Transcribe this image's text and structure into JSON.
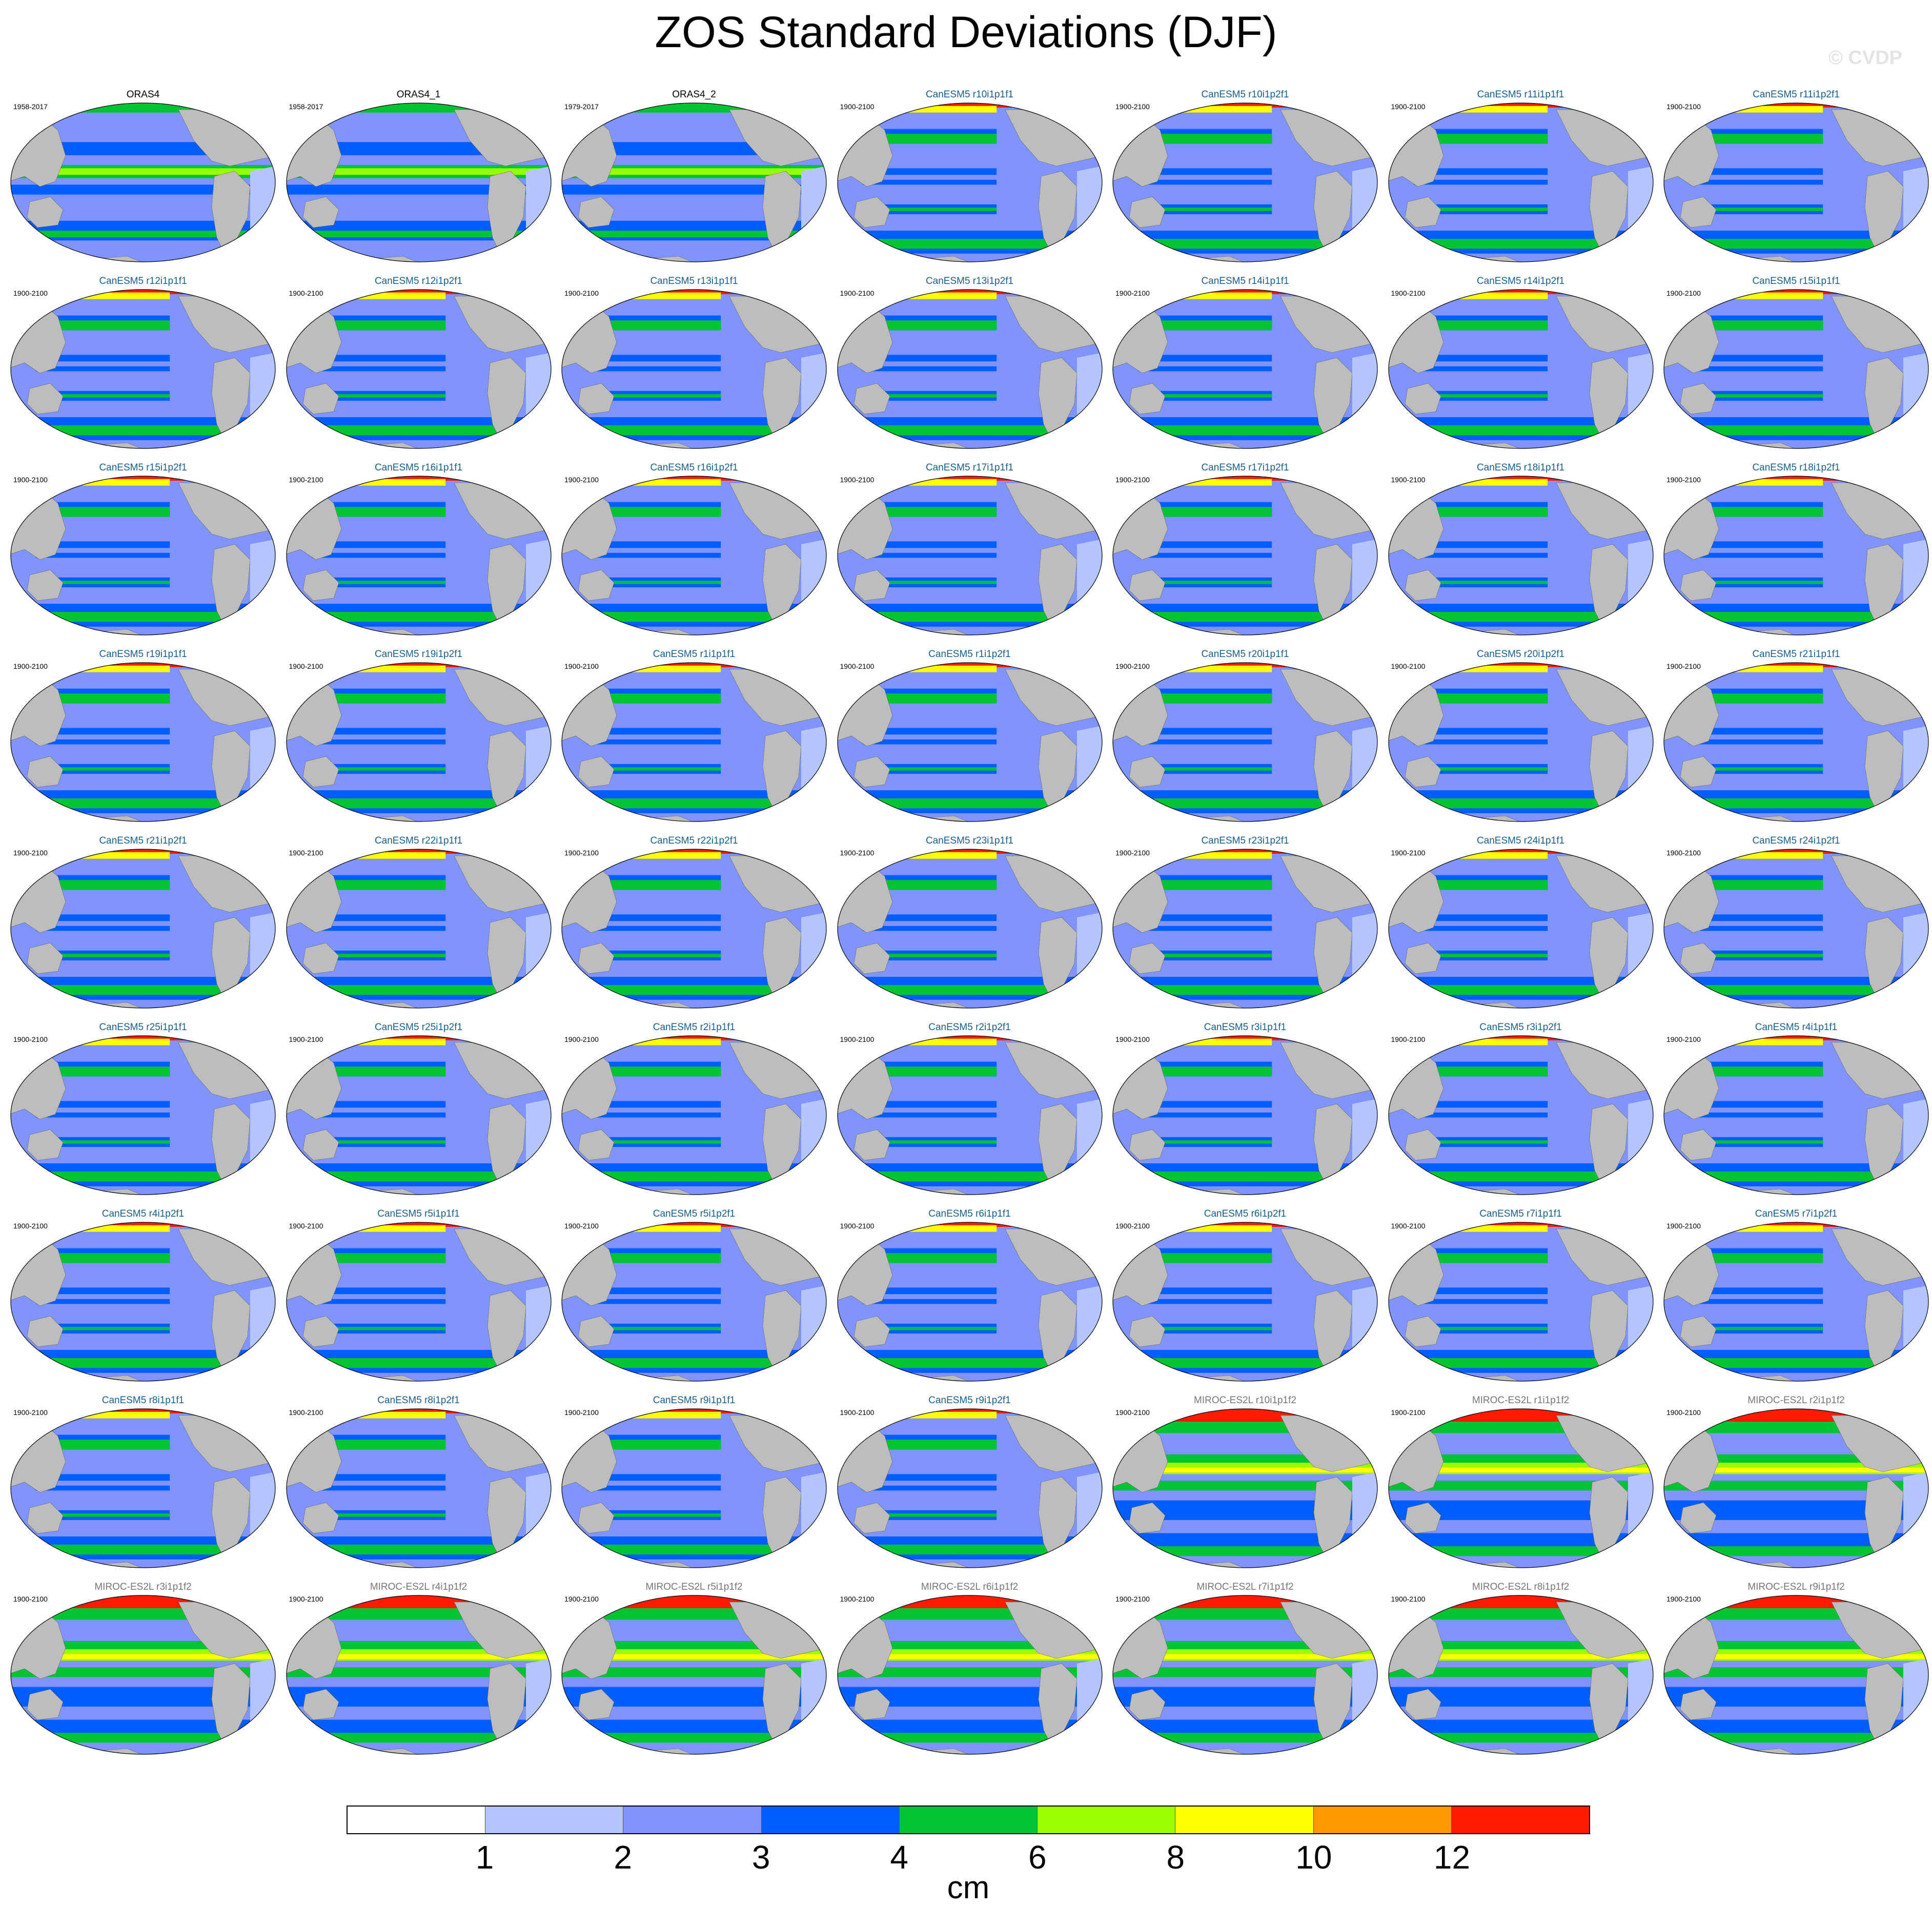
{
  "title": "ZOS Standard Deviations (DJF)",
  "watermark": "© CVDP",
  "legend": {
    "unit": "cm",
    "tick_labels": [
      "1",
      "2",
      "3",
      "4",
      "6",
      "8",
      "10",
      "12"
    ],
    "colors": [
      "#ffffff",
      "#b3c6ff",
      "#8094ff",
      "#005eff",
      "#00c432",
      "#99ff00",
      "#ffff00",
      "#ff9900",
      "#ff1a00"
    ]
  },
  "colors": {
    "obs_title": "#000000",
    "canesm_title": "#1a5f8c",
    "miroc_title": "#777777",
    "land": "#bdbdbd"
  },
  "panels": [
    {
      "title": "ORAS4",
      "years": "1958-2017",
      "group": "obs"
    },
    {
      "title": "ORAS4_1",
      "years": "1958-2017",
      "group": "obs"
    },
    {
      "title": "ORAS4_2",
      "years": "1979-2017",
      "group": "obs"
    },
    {
      "title": "CanESM5 r10i1p1f1",
      "years": "1900-2100",
      "group": "canesm"
    },
    {
      "title": "CanESM5 r10i1p2f1",
      "years": "1900-2100",
      "group": "canesm"
    },
    {
      "title": "CanESM5 r11i1p1f1",
      "years": "1900-2100",
      "group": "canesm"
    },
    {
      "title": "CanESM5 r11i1p2f1",
      "years": "1900-2100",
      "group": "canesm"
    },
    {
      "title": "CanESM5 r12i1p1f1",
      "years": "1900-2100",
      "group": "canesm"
    },
    {
      "title": "CanESM5 r12i1p2f1",
      "years": "1900-2100",
      "group": "canesm"
    },
    {
      "title": "CanESM5 r13i1p1f1",
      "years": "1900-2100",
      "group": "canesm"
    },
    {
      "title": "CanESM5 r13i1p2f1",
      "years": "1900-2100",
      "group": "canesm"
    },
    {
      "title": "CanESM5 r14i1p1f1",
      "years": "1900-2100",
      "group": "canesm"
    },
    {
      "title": "CanESM5 r14i1p2f1",
      "years": "1900-2100",
      "group": "canesm"
    },
    {
      "title": "CanESM5 r15i1p1f1",
      "years": "1900-2100",
      "group": "canesm"
    },
    {
      "title": "CanESM5 r15i1p2f1",
      "years": "1900-2100",
      "group": "canesm"
    },
    {
      "title": "CanESM5 r16i1p1f1",
      "years": "1900-2100",
      "group": "canesm"
    },
    {
      "title": "CanESM5 r16i1p2f1",
      "years": "1900-2100",
      "group": "canesm"
    },
    {
      "title": "CanESM5 r17i1p1f1",
      "years": "1900-2100",
      "group": "canesm"
    },
    {
      "title": "CanESM5 r17i1p2f1",
      "years": "1900-2100",
      "group": "canesm"
    },
    {
      "title": "CanESM5 r18i1p1f1",
      "years": "1900-2100",
      "group": "canesm"
    },
    {
      "title": "CanESM5 r18i1p2f1",
      "years": "1900-2100",
      "group": "canesm"
    },
    {
      "title": "CanESM5 r19i1p1f1",
      "years": "1900-2100",
      "group": "canesm"
    },
    {
      "title": "CanESM5 r19i1p2f1",
      "years": "1900-2100",
      "group": "canesm"
    },
    {
      "title": "CanESM5 r1i1p1f1",
      "years": "1900-2100",
      "group": "canesm"
    },
    {
      "title": "CanESM5 r1i1p2f1",
      "years": "1900-2100",
      "group": "canesm"
    },
    {
      "title": "CanESM5 r20i1p1f1",
      "years": "1900-2100",
      "group": "canesm"
    },
    {
      "title": "CanESM5 r20i1p2f1",
      "years": "1900-2100",
      "group": "canesm"
    },
    {
      "title": "CanESM5 r21i1p1f1",
      "years": "1900-2100",
      "group": "canesm"
    },
    {
      "title": "CanESM5 r21i1p2f1",
      "years": "1900-2100",
      "group": "canesm"
    },
    {
      "title": "CanESM5 r22i1p1f1",
      "years": "1900-2100",
      "group": "canesm"
    },
    {
      "title": "CanESM5 r22i1p2f1",
      "years": "1900-2100",
      "group": "canesm"
    },
    {
      "title": "CanESM5 r23i1p1f1",
      "years": "1900-2100",
      "group": "canesm"
    },
    {
      "title": "CanESM5 r23i1p2f1",
      "years": "1900-2100",
      "group": "canesm"
    },
    {
      "title": "CanESM5 r24i1p1f1",
      "years": "1900-2100",
      "group": "canesm"
    },
    {
      "title": "CanESM5 r24i1p2f1",
      "years": "1900-2100",
      "group": "canesm"
    },
    {
      "title": "CanESM5 r25i1p1f1",
      "years": "1900-2100",
      "group": "canesm"
    },
    {
      "title": "CanESM5 r25i1p2f1",
      "years": "1900-2100",
      "group": "canesm"
    },
    {
      "title": "CanESM5 r2i1p1f1",
      "years": "1900-2100",
      "group": "canesm"
    },
    {
      "title": "CanESM5 r2i1p2f1",
      "years": "1900-2100",
      "group": "canesm"
    },
    {
      "title": "CanESM5 r3i1p1f1",
      "years": "1900-2100",
      "group": "canesm"
    },
    {
      "title": "CanESM5 r3i1p2f1",
      "years": "1900-2100",
      "group": "canesm"
    },
    {
      "title": "CanESM5 r4i1p1f1",
      "years": "1900-2100",
      "group": "canesm"
    },
    {
      "title": "CanESM5 r4i1p2f1",
      "years": "1900-2100",
      "group": "canesm"
    },
    {
      "title": "CanESM5 r5i1p1f1",
      "years": "1900-2100",
      "group": "canesm"
    },
    {
      "title": "CanESM5 r5i1p2f1",
      "years": "1900-2100",
      "group": "canesm"
    },
    {
      "title": "CanESM5 r6i1p1f1",
      "years": "1900-2100",
      "group": "canesm"
    },
    {
      "title": "CanESM5 r6i1p2f1",
      "years": "1900-2100",
      "group": "canesm"
    },
    {
      "title": "CanESM5 r7i1p1f1",
      "years": "1900-2100",
      "group": "canesm"
    },
    {
      "title": "CanESM5 r7i1p2f1",
      "years": "1900-2100",
      "group": "canesm"
    },
    {
      "title": "CanESM5 r8i1p1f1",
      "years": "1900-2100",
      "group": "canesm"
    },
    {
      "title": "CanESM5 r8i1p2f1",
      "years": "1900-2100",
      "group": "canesm"
    },
    {
      "title": "CanESM5 r9i1p1f1",
      "years": "1900-2100",
      "group": "canesm"
    },
    {
      "title": "CanESM5 r9i1p2f1",
      "years": "1900-2100",
      "group": "canesm"
    },
    {
      "title": "MIROC-ES2L r10i1p1f2",
      "years": "1900-2100",
      "group": "miroc"
    },
    {
      "title": "MIROC-ES2L r1i1p1f2",
      "years": "1900-2100",
      "group": "miroc"
    },
    {
      "title": "MIROC-ES2L r2i1p1f2",
      "years": "1900-2100",
      "group": "miroc"
    },
    {
      "title": "MIROC-ES2L r3i1p1f2",
      "years": "1900-2100",
      "group": "miroc"
    },
    {
      "title": "MIROC-ES2L r4i1p1f2",
      "years": "1900-2100",
      "group": "miroc"
    },
    {
      "title": "MIROC-ES2L r5i1p1f2",
      "years": "1900-2100",
      "group": "miroc"
    },
    {
      "title": "MIROC-ES2L r6i1p1f2",
      "years": "1900-2100",
      "group": "miroc"
    },
    {
      "title": "MIROC-ES2L r7i1p1f2",
      "years": "1900-2100",
      "group": "miroc"
    },
    {
      "title": "MIROC-ES2L r8i1p1f2",
      "years": "1900-2100",
      "group": "miroc"
    },
    {
      "title": "MIROC-ES2L r9i1p1f2",
      "years": "1900-2100",
      "group": "miroc"
    }
  ]
}
